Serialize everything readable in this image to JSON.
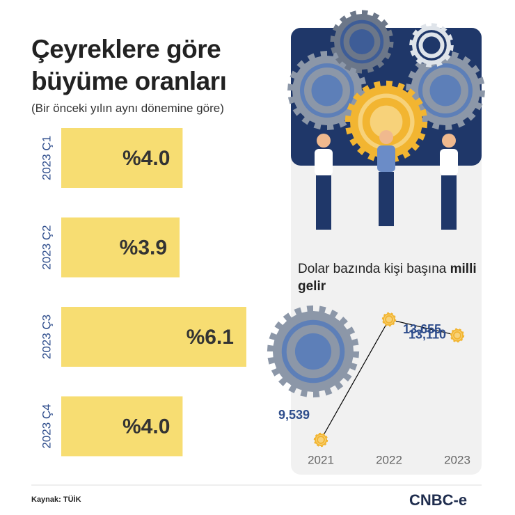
{
  "title": "Çeyreklere göre büyüme oranları",
  "subtitle": "(Bir önceki yılın aynı dönemine göre)",
  "source": "Kaynak: TÜİK",
  "logo": "CNBC-e",
  "chart_data": [
    {
      "type": "hbar",
      "categories": [
        "2023 Ç1",
        "2023 Ç2",
        "2023 Ç3",
        "2023 Ç4"
      ],
      "values": [
        4.0,
        3.9,
        6.1,
        4.0
      ],
      "value_labels": [
        "%4.0",
        "%3.9",
        "%6.1",
        "%4.0"
      ],
      "color": "#f7dd72"
    },
    {
      "type": "line",
      "title": "Dolar bazında kişi başına",
      "title_emphasis": "milli gelir",
      "x": [
        2021,
        2022,
        2023
      ],
      "values": [
        9539,
        13655,
        13110
      ],
      "value_labels": [
        "9,539",
        "13,655",
        "13,110"
      ],
      "color": "#000000",
      "marker_color": "#f2b531"
    }
  ]
}
